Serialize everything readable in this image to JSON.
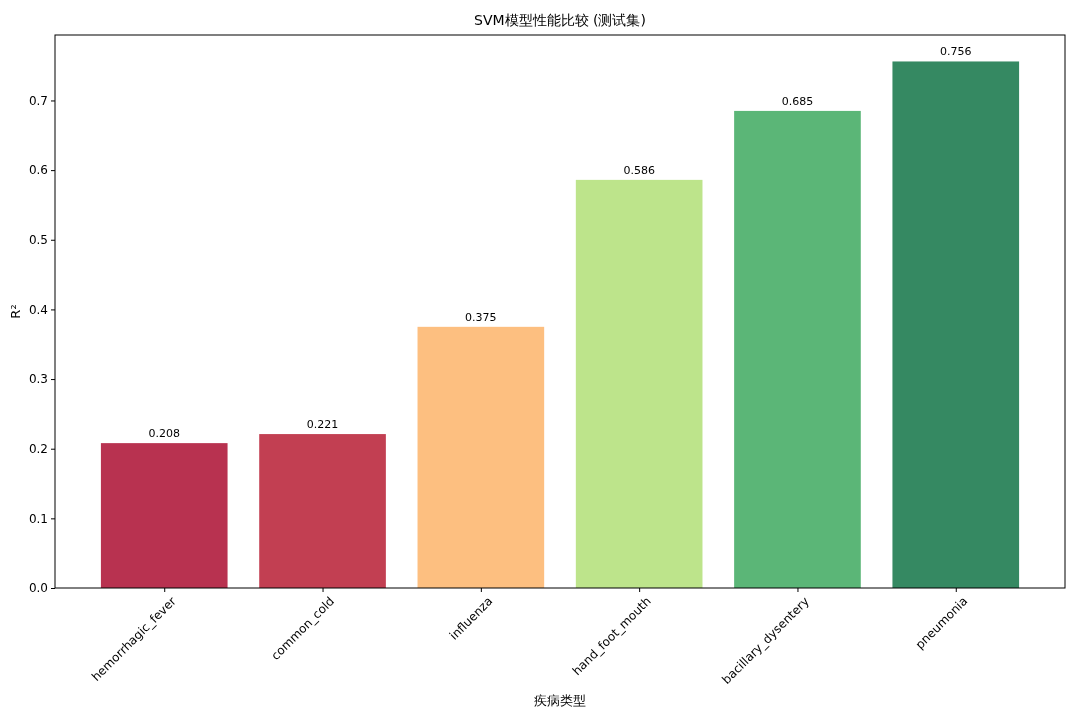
{
  "chart_data": {
    "type": "bar",
    "title": "SVM模型性能比较 (测试集)",
    "xlabel": "疾病类型",
    "ylabel": "R²",
    "categories": [
      "hemorrhagic_fever",
      "common_cold",
      "influenza",
      "hand_foot_mouth",
      "bacillary_dysentery",
      "pneumonia"
    ],
    "values": [
      0.208,
      0.221,
      0.375,
      0.586,
      0.685,
      0.756
    ],
    "colors": [
      "#b83250",
      "#c23f52",
      "#fdbf80",
      "#bde48b",
      "#5bb677",
      "#358962"
    ],
    "ylim": [
      0,
      0.794
    ],
    "yticks": [
      {
        "value": 0,
        "label": "0.0"
      },
      0.1,
      0.2,
      0.3,
      0.4,
      0.5,
      0.6,
      0.7
    ],
    "data_labels": true,
    "grid": false
  }
}
